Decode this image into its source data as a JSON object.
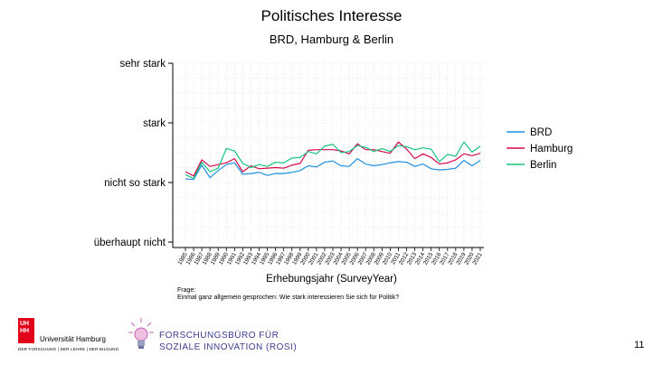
{
  "slide": {
    "note_label": "Frage:",
    "note_text": "Einmal ganz allgemein gesprochen: Wie stark interessieren Sie sich für Politik?",
    "uhh_logo_text": "UH\nHH",
    "university_name": "Universität Hamburg",
    "university_tagline": "DER FORSCHUNG | DER LEHRE | DER BILDUNG",
    "rosi_line1": "FORSCHUNGSBÜRO FÜR",
    "rosi_line2": "SOZIALE INNOVATION (ROSI)",
    "page_number": "11"
  },
  "chart_data": {
    "type": "line",
    "title": "Politisches Interesse",
    "subtitle": "BRD, Hamburg & Berlin",
    "xlabel": "Erhebungsjahr (SurveyYear)",
    "ylabel": "",
    "ylim": [
      1,
      4
    ],
    "yticks": [
      {
        "value": 4,
        "label": "sehr stark"
      },
      {
        "value": 3,
        "label": "stark"
      },
      {
        "value": 2,
        "label": "nicht so stark"
      },
      {
        "value": 1,
        "label": "überhaupt nicht"
      }
    ],
    "x": [
      "1985",
      "1986",
      "1987",
      "1988",
      "1989",
      "1990",
      "1991",
      "1992",
      "1993",
      "1994",
      "1995",
      "1996",
      "1997",
      "1998",
      "1999",
      "2000",
      "2001",
      "2002",
      "2003",
      "2004",
      "2005",
      "2006",
      "2007",
      "2008",
      "2009",
      "2010",
      "2011",
      "2012",
      "2013",
      "2014",
      "2015",
      "2016",
      "2017",
      "2018",
      "2019",
      "2020",
      "2021"
    ],
    "grid": true,
    "legend_position": "right",
    "series": [
      {
        "name": "BRD",
        "color": "#1f8fe0",
        "values": [
          2.06,
          2.05,
          2.29,
          2.08,
          2.2,
          2.3,
          2.33,
          2.14,
          2.15,
          2.17,
          2.12,
          2.15,
          2.15,
          2.17,
          2.2,
          2.28,
          2.26,
          2.34,
          2.36,
          2.28,
          2.27,
          2.4,
          2.31,
          2.28,
          2.3,
          2.33,
          2.35,
          2.34,
          2.27,
          2.31,
          2.23,
          2.21,
          2.22,
          2.24,
          2.37,
          2.28,
          2.37
        ]
      },
      {
        "name": "Hamburg",
        "color": "#d6084f",
        "values": [
          2.18,
          2.11,
          2.38,
          2.27,
          2.3,
          2.33,
          2.4,
          2.18,
          2.28,
          2.23,
          2.24,
          2.25,
          2.24,
          2.29,
          2.32,
          2.54,
          2.55,
          2.55,
          2.55,
          2.53,
          2.48,
          2.65,
          2.55,
          2.55,
          2.52,
          2.49,
          2.68,
          2.56,
          2.4,
          2.48,
          2.42,
          2.31,
          2.33,
          2.38,
          2.48,
          2.45,
          2.49
        ]
      },
      {
        "name": "Berlin",
        "color": "#17c47a",
        "values": [
          2.13,
          2.07,
          2.34,
          2.18,
          2.24,
          2.57,
          2.53,
          2.32,
          2.25,
          2.3,
          2.27,
          2.34,
          2.33,
          2.41,
          2.42,
          2.52,
          2.48,
          2.61,
          2.64,
          2.5,
          2.52,
          2.62,
          2.59,
          2.52,
          2.57,
          2.52,
          2.62,
          2.6,
          2.55,
          2.58,
          2.56,
          2.35,
          2.47,
          2.44,
          2.68,
          2.51,
          2.61
        ]
      }
    ]
  }
}
